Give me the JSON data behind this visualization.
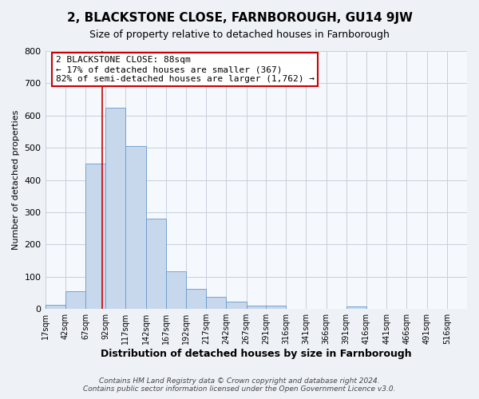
{
  "title": "2, BLACKSTONE CLOSE, FARNBOROUGH, GU14 9JW",
  "subtitle": "Size of property relative to detached houses in Farnborough",
  "xlabel": "Distribution of detached houses by size in Farnborough",
  "ylabel": "Number of detached properties",
  "bin_edges": [
    17,
    42,
    67,
    92,
    117,
    142,
    167,
    192,
    217,
    242,
    267,
    291,
    316,
    341,
    366,
    391,
    416,
    441,
    466,
    491,
    516
  ],
  "bin_heights": [
    12,
    55,
    450,
    625,
    505,
    280,
    118,
    63,
    38,
    22,
    10,
    10,
    0,
    0,
    0,
    7,
    0,
    0,
    0,
    0
  ],
  "bar_color": "#c8d8ec",
  "bar_edge_color": "#6699cc",
  "property_size": 88,
  "vline_color": "#cc0000",
  "annotation_line1": "2 BLACKSTONE CLOSE: 88sqm",
  "annotation_line2": "← 17% of detached houses are smaller (367)",
  "annotation_line3": "82% of semi-detached houses are larger (1,762) →",
  "annotation_box_color": "#ffffff",
  "annotation_box_edge_color": "#cc0000",
  "ylim": [
    0,
    800
  ],
  "yticks": [
    0,
    100,
    200,
    300,
    400,
    500,
    600,
    700,
    800
  ],
  "footer1": "Contains HM Land Registry data © Crown copyright and database right 2024.",
  "footer2": "Contains public sector information licensed under the Open Government Licence v3.0.",
  "background_color": "#eef2f7",
  "plot_background_color": "#f5f8fc",
  "grid_color": "#c8d0dc",
  "tick_labels": [
    "17sqm",
    "42sqm",
    "67sqm",
    "92sqm",
    "117sqm",
    "142sqm",
    "167sqm",
    "192sqm",
    "217sqm",
    "242sqm",
    "267sqm",
    "291sqm",
    "316sqm",
    "341sqm",
    "366sqm",
    "391sqm",
    "416sqm",
    "441sqm",
    "466sqm",
    "491sqm",
    "516sqm"
  ],
  "title_fontsize": 11,
  "subtitle_fontsize": 9,
  "xlabel_fontsize": 9,
  "ylabel_fontsize": 8,
  "ytick_fontsize": 8,
  "xtick_fontsize": 7,
  "annotation_fontsize": 8,
  "footer_fontsize": 6.5
}
